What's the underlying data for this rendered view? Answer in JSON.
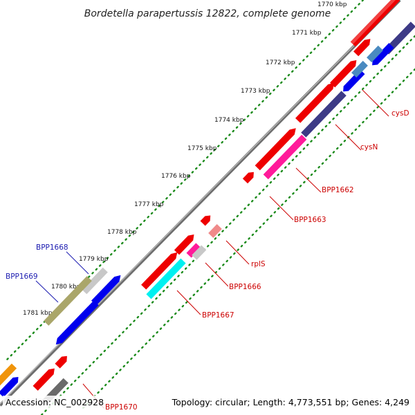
{
  "title": "Bordetella parapertussis 12822, complete genome",
  "ticks": [
    "1770 kbp",
    "1771 kbp",
    "1772 kbp",
    "1773 kbp",
    "1774 kbp",
    "1775 kbp",
    "1776 kbp",
    "1777 kbp",
    "1778 kbp",
    "1779 kbp",
    "1780 kbp",
    "1781 kbp"
  ],
  "gene_labels": {
    "cysD": "cysD",
    "cysN": "cysN",
    "bpp1662": "BPP1662",
    "bpp1663": "BPP1663",
    "rplS": "rplS",
    "bpp1666": "BPP1666",
    "bpp1667": "BPP1667",
    "bpp1668": "BPP1668",
    "bpp1669": "BPP1669",
    "bpp1670": "BPP1670"
  },
  "footer": {
    "accession": "Accession: NC_002928",
    "topology": "Topology: circular; Length: 4,773,551 bp; Genes: 4,249"
  },
  "colors": {
    "backbone": "#8a8a8a",
    "tick_dots": "#1a8a1a",
    "red_gene": "#ee0000",
    "navy_gene": "#3d3a86",
    "blue_gene": "#0000ee",
    "magenta_gene": "#ff1a9a",
    "cyan_gene": "#00f0f0",
    "olive_gene": "#aaa66a",
    "grey_gene": "#c8c8c8",
    "pink_gene": "#f08a8a",
    "orange_gene": "#f0940a",
    "label_red": "#cc0000",
    "label_blue": "#1a1ab0"
  }
}
